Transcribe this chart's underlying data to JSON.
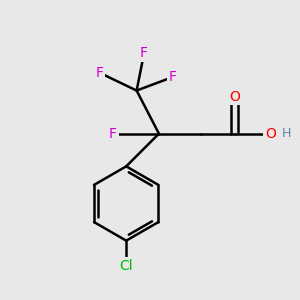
{
  "background_color": "#e8e8e8",
  "bond_color": "#000000",
  "atom_colors": {
    "F": "#cc00cc",
    "O": "#ff0000",
    "H": "#5588aa",
    "Cl": "#00bb00",
    "C": "#000000"
  },
  "bond_width": 1.8,
  "figsize": [
    3.0,
    3.0
  ],
  "dpi": 100
}
